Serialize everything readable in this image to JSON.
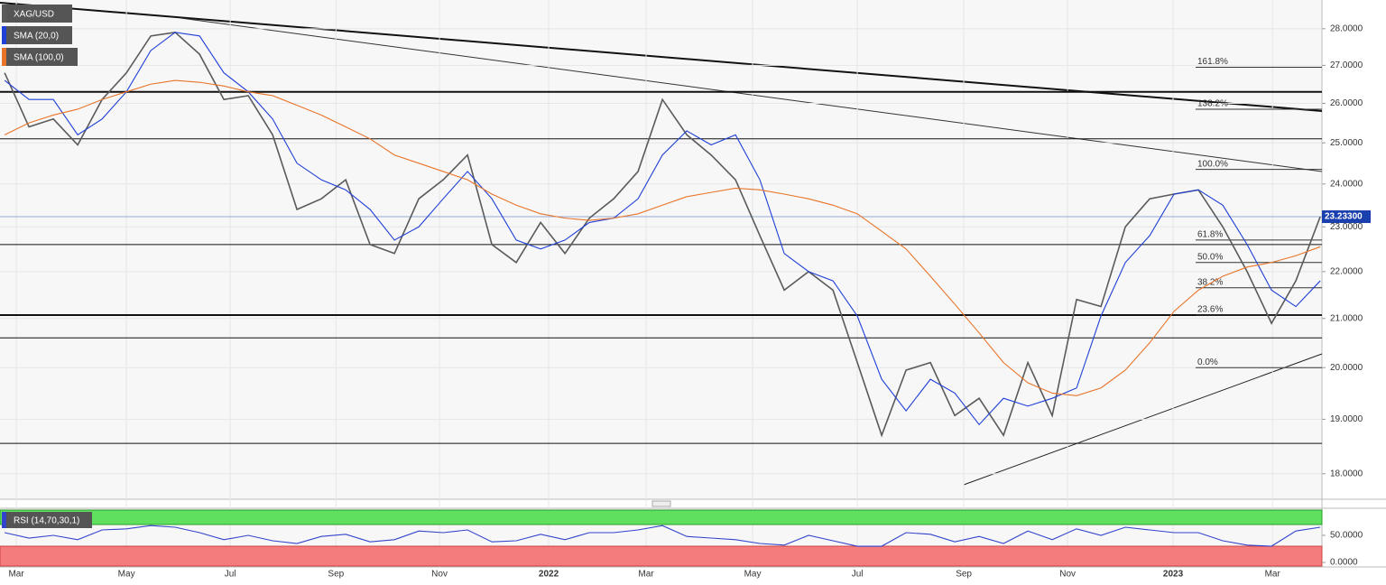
{
  "chart_data": [
    {
      "type": "line",
      "log": true,
      "ylim": [
        17.55,
        28.81
      ],
      "xlim": [
        -0.19,
        54.07
      ],
      "yticks": [
        {
          "value": 18,
          "label": "18.0000"
        },
        {
          "value": 19,
          "label": "19.0000"
        },
        {
          "value": 20,
          "label": "20.0000"
        },
        {
          "value": 21,
          "label": "21.0000"
        },
        {
          "value": 22,
          "label": "22.0000"
        },
        {
          "value": 23,
          "label": "23.0000"
        },
        {
          "value": 24,
          "label": "24.0000"
        },
        {
          "value": 25,
          "label": "25.0000"
        },
        {
          "value": 26,
          "label": "26.0000"
        },
        {
          "value": 27,
          "label": "27.0000"
        },
        {
          "value": 28,
          "label": "28.0000"
        }
      ],
      "series": [
        {
          "name": "XAG/USD",
          "color": "#5a5a5a",
          "values": [
            26.8,
            25.4,
            25.6,
            24.95,
            26.1,
            26.8,
            27.8,
            27.9,
            27.3,
            26.1,
            26.2,
            25.2,
            23.4,
            23.65,
            24.1,
            22.6,
            22.4,
            23.65,
            24.1,
            24.7,
            22.6,
            22.2,
            23.1,
            22.4,
            23.2,
            23.65,
            24.3,
            26.1,
            25.2,
            24.7,
            24.1,
            22.8,
            21.6,
            22.0,
            21.6,
            20.1,
            18.7,
            19.95,
            20.1,
            19.07,
            19.4,
            18.7,
            20.1,
            19.07,
            21.4,
            21.25,
            23.0,
            23.65,
            23.76,
            23.86,
            23.0,
            22.0,
            20.9,
            21.8,
            23.233
          ]
        },
        {
          "name": "SMA (20,0)",
          "color": "#1f3fd6",
          "values": [
            26.6,
            26.1,
            26.1,
            25.2,
            25.6,
            26.3,
            27.4,
            27.9,
            27.8,
            26.8,
            26.3,
            25.6,
            24.5,
            24.1,
            23.86,
            23.4,
            22.7,
            23.0,
            23.65,
            24.3,
            23.65,
            22.7,
            22.5,
            22.7,
            23.1,
            23.2,
            23.65,
            24.7,
            25.3,
            24.95,
            25.2,
            24.1,
            22.4,
            22.0,
            21.8,
            21.05,
            19.77,
            19.16,
            19.77,
            19.5,
            18.9,
            19.4,
            19.25,
            19.4,
            19.6,
            21.05,
            22.2,
            22.8,
            23.76,
            23.86,
            23.5,
            22.6,
            21.6,
            21.25,
            21.8
          ]
        },
        {
          "name": "SMA (100,0)",
          "color": "#e8742a",
          "values": [
            25.2,
            25.5,
            25.7,
            25.85,
            26.1,
            26.3,
            26.5,
            26.6,
            26.55,
            26.45,
            26.3,
            26.2,
            25.95,
            25.7,
            25.4,
            25.1,
            24.7,
            24.5,
            24.3,
            24.1,
            23.76,
            23.5,
            23.3,
            23.2,
            23.15,
            23.2,
            23.3,
            23.5,
            23.7,
            23.8,
            23.9,
            23.86,
            23.76,
            23.65,
            23.5,
            23.3,
            22.9,
            22.5,
            21.9,
            21.3,
            20.7,
            20.1,
            19.7,
            19.5,
            19.45,
            19.6,
            19.95,
            20.5,
            21.15,
            21.6,
            21.9,
            22.1,
            22.2,
            22.35,
            22.55
          ]
        }
      ],
      "last_price": {
        "value": 23.233,
        "label": "23.23300"
      },
      "levels": [
        26.3,
        25.1,
        22.6,
        21.07,
        20.6,
        18.55
      ],
      "fib_levels": [
        {
          "value": 26.95,
          "label": "161.8%"
        },
        {
          "value": 25.85,
          "label": "138.2%"
        },
        {
          "value": 24.35,
          "label": "100.0%"
        },
        {
          "value": 22.7,
          "label": "61.8%"
        },
        {
          "value": 22.2,
          "label": "50.0%"
        },
        {
          "value": 21.65,
          "label": "38.2%"
        },
        {
          "value": 21.07,
          "label": "23.6%"
        },
        {
          "value": 20.0,
          "label": "0.0%"
        }
      ]
    },
    {
      "type": "line",
      "ylim": [
        -8.3,
        100
      ],
      "xlim": [
        -0.19,
        54.07
      ],
      "yticks": [
        {
          "value": 0,
          "label": "0.0000"
        },
        {
          "value": 50,
          "label": "50.0000"
        }
      ],
      "overbought": 70,
      "oversold": 30,
      "series": [
        {
          "name": "RSI (14,70,30,1)",
          "color": "#3344cc",
          "values": [
            55,
            45,
            50,
            42,
            60,
            62,
            68,
            65,
            55,
            42,
            50,
            40,
            35,
            48,
            52,
            38,
            42,
            58,
            55,
            60,
            38,
            40,
            52,
            42,
            55,
            55,
            60,
            68,
            48,
            45,
            42,
            35,
            32,
            50,
            40,
            30,
            30,
            55,
            52,
            38,
            48,
            35,
            58,
            42,
            62,
            50,
            65,
            60,
            55,
            55,
            40,
            32,
            30,
            58,
            65
          ]
        }
      ],
      "xticks": [
        {
          "value": 0.48,
          "label": "Mar"
        },
        {
          "value": 5.0,
          "label": "May"
        },
        {
          "value": 9.26,
          "label": "Jul"
        },
        {
          "value": 13.6,
          "label": "Sep"
        },
        {
          "value": 17.85,
          "label": "Nov"
        },
        {
          "value": 22.33,
          "label": "2022"
        },
        {
          "value": 26.33,
          "label": "Mar"
        },
        {
          "value": 30.7,
          "label": "May"
        },
        {
          "value": 35.0,
          "label": "Jul"
        },
        {
          "value": 39.37,
          "label": "Sep"
        },
        {
          "value": 43.63,
          "label": "Nov"
        },
        {
          "value": 47.96,
          "label": "2023"
        },
        {
          "value": 52.04,
          "label": "Mar"
        }
      ]
    }
  ]
}
